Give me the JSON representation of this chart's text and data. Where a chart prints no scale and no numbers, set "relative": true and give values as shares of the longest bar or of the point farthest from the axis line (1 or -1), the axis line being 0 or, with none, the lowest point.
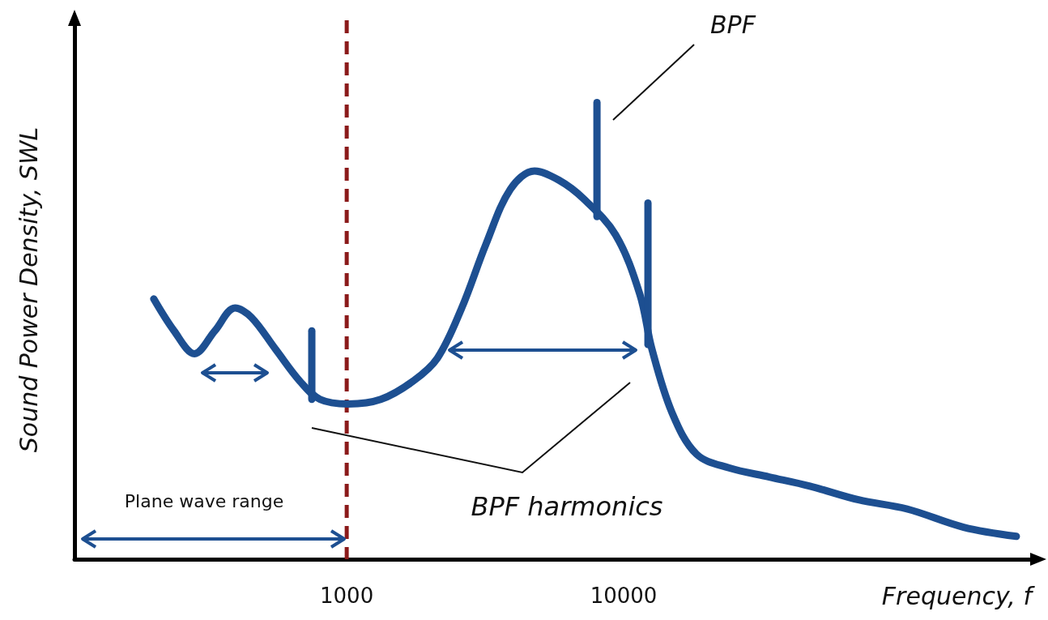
{
  "chart_data": {
    "type": "line",
    "relative": true,
    "xlabel": "Frequency, f",
    "ylabel": "Sound Power Density, SWL",
    "log": "x",
    "xlim": [
      104,
      310000
    ],
    "xticks": [
      1000,
      10000
    ],
    "series": [
      {
        "color": "#1d4f91",
        "x": [
          201,
          238,
          282,
          334,
          395,
          452,
          553,
          677,
          801,
          1014,
          1327,
          1738,
          2125,
          2602,
          3184,
          3899,
          4766,
          5834,
          7141,
          9354,
          11440,
          12650,
          14970,
          18330,
          23990,
          33580,
          47070,
          70470,
          105500,
          169000,
          261800
        ],
        "values": [
          0.57,
          0.5,
          0.45,
          0.5,
          0.55,
          0.53,
          0.46,
          0.39,
          0.35,
          0.34,
          0.35,
          0.39,
          0.44,
          0.55,
          0.69,
          0.81,
          0.85,
          0.83,
          0.79,
          0.71,
          0.58,
          0.46,
          0.32,
          0.23,
          0.2,
          0.18,
          0.16,
          0.13,
          0.11,
          0.07,
          0.05
        ]
      },
      {
        "color": "#1d4f91",
        "x": [
          748,
          748
        ],
        "values": [
          0.35,
          0.5
        ]
      },
      {
        "color": "#1d4f91",
        "x": [
          8010,
          8010
        ],
        "values": [
          0.75,
          1.0
        ]
      },
      {
        "color": "#1d4f91",
        "x": [
          12240,
          12240
        ],
        "values": [
          0.47,
          0.78
        ]
      }
    ],
    "ref_lines": [
      {
        "axis": "x",
        "value": 1000,
        "color": "#8b1a1a",
        "line_style": "dashed"
      }
    ],
    "annotations": [
      "Plane wave range",
      "BPF",
      "BPF harmonics"
    ]
  }
}
